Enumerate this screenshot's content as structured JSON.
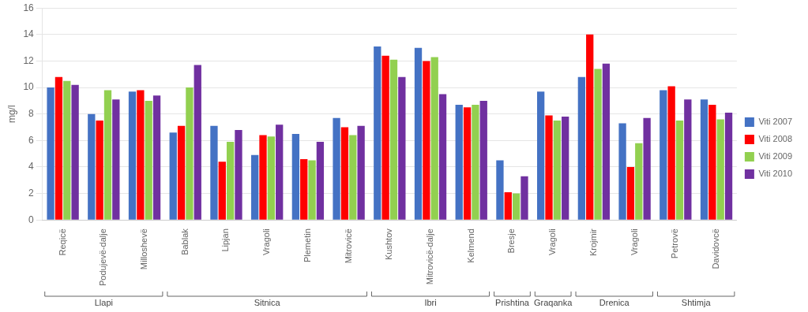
{
  "chart_data": {
    "type": "bar",
    "ylabel": "mg/l",
    "categories": [
      "Reqicë",
      "Podujevë-dalje",
      "Milloshevë",
      "Bablak",
      "Lipjan",
      "Vragoli",
      "Plemetin",
      "Mitrovicë",
      "Kushtov",
      "Mitrovicë-dalje",
      "Kelmend",
      "Bresje",
      "Vragoli",
      "Krojmir",
      "Vragoli",
      "Petrovë",
      "Davidovcë"
    ],
    "groups": [
      {
        "name": "Llapi",
        "categories": [
          "Reqicë",
          "Podujevë-dalje",
          "Milloshevë"
        ]
      },
      {
        "name": "Sitnica",
        "categories": [
          "Bablak",
          "Lipjan",
          "Vragoli",
          "Plemetin",
          "Mitrovicë"
        ]
      },
      {
        "name": "Ibri",
        "categories": [
          "Kushtov",
          "Mitrovicë-dalje",
          "Kelmend"
        ]
      },
      {
        "name": "Prishtina",
        "categories": [
          "Bresje"
        ]
      },
      {
        "name": "Graqanka",
        "categories": [
          "Vragoli"
        ]
      },
      {
        "name": "Drenica",
        "categories": [
          "Krojmir",
          "Vragoli"
        ]
      },
      {
        "name": "Shtimja",
        "categories": [
          "Petrovë",
          "Davidovcë"
        ]
      }
    ],
    "series": [
      {
        "name": "Viti 2007",
        "color": "#4472C4",
        "values": [
          10.0,
          8.0,
          9.7,
          6.6,
          7.1,
          4.9,
          6.5,
          7.7,
          13.1,
          13.0,
          8.7,
          4.5,
          9.7,
          10.8,
          7.3,
          9.8,
          9.1
        ]
      },
      {
        "name": "Viti 2008",
        "color": "#FF0000",
        "values": [
          10.8,
          7.5,
          9.8,
          7.1,
          4.4,
          6.4,
          4.6,
          7.0,
          12.4,
          12.0,
          8.5,
          2.1,
          7.9,
          14.0,
          4.0,
          10.1,
          8.7
        ]
      },
      {
        "name": "Viti 2009",
        "color": "#92D050",
        "values": [
          10.5,
          9.8,
          9.0,
          10.0,
          5.9,
          6.3,
          4.5,
          6.4,
          12.1,
          12.3,
          8.7,
          2.0,
          7.5,
          11.4,
          5.8,
          7.5,
          7.6
        ]
      },
      {
        "name": "Viti 2010",
        "color": "#7030A0",
        "values": [
          10.2,
          9.1,
          9.4,
          11.7,
          6.8,
          7.2,
          5.9,
          7.1,
          10.8,
          9.5,
          9.0,
          3.3,
          7.8,
          11.8,
          7.7,
          9.1,
          8.1
        ]
      }
    ],
    "ylim": [
      0,
      16
    ],
    "yticks": [
      0,
      2,
      4,
      6,
      8,
      10,
      12,
      14,
      16
    ],
    "grid": true,
    "legend": "right"
  }
}
